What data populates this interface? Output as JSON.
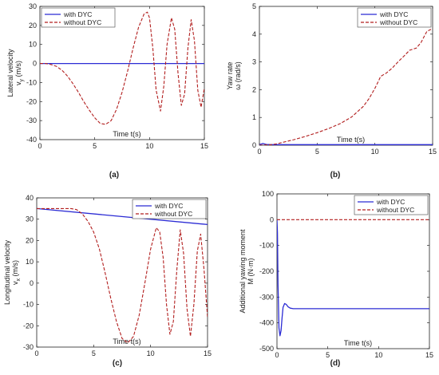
{
  "colors": {
    "with_dyc": "#2b2bd4",
    "without_dyc": "#b21e1e",
    "axis": "#222222"
  },
  "chart_data": [
    {
      "type": "line",
      "panel_label": "(a)",
      "title": "",
      "xlabel": "Time t(s)",
      "ylabel": "Lateral velocity",
      "ylabel_sub": "v",
      "ylabel_subscript": "y",
      "ylabel_unit": "(m/s)",
      "xlim": [
        0,
        15
      ],
      "ylim": [
        -40,
        30
      ],
      "xticks": [
        0,
        5,
        10,
        15
      ],
      "yticks": [
        -40,
        -30,
        -20,
        -10,
        0,
        10,
        20,
        30
      ],
      "grid": false,
      "legend_position": "top-left",
      "series": [
        {
          "name": "with DYC",
          "style": "solid",
          "x": [
            0,
            15
          ],
          "y": [
            0,
            0
          ]
        },
        {
          "name": "without DYC",
          "style": "dashed",
          "x": [
            0,
            0.5,
            1,
            1.5,
            2,
            2.5,
            3,
            3.5,
            4,
            4.5,
            5,
            5.5,
            6,
            6.5,
            7,
            7.5,
            8,
            8.5,
            9,
            9.5,
            9.8,
            10,
            10.3,
            10.6,
            11,
            11.3,
            11.6,
            12,
            12.3,
            12.6,
            12.9,
            13.2,
            13.5,
            13.8,
            14.1,
            14.4,
            14.7,
            15
          ],
          "y": [
            0,
            0,
            -0.5,
            -1.5,
            -3.5,
            -6.5,
            -10.5,
            -15,
            -20,
            -24.5,
            -28.5,
            -31.5,
            -32,
            -30,
            -24,
            -15,
            -4,
            8,
            19,
            26,
            27,
            24,
            8,
            -14,
            -25,
            -12,
            10,
            24,
            18,
            -5,
            -22,
            -16,
            8,
            23,
            12,
            -14,
            -23,
            -13
          ]
        }
      ]
    },
    {
      "type": "line",
      "panel_label": "(b)",
      "title": "",
      "xlabel": "Time t(s)",
      "ylabel": "Yaw rate",
      "ylabel_sub": "ω",
      "ylabel_subscript": "",
      "ylabel_unit": "(rad/s)",
      "xlim": [
        0,
        15
      ],
      "ylim": [
        0,
        5
      ],
      "xticks": [
        0,
        5,
        10,
        15
      ],
      "yticks": [
        0,
        1,
        2,
        3,
        4,
        5
      ],
      "grid": false,
      "legend_position": "top-right",
      "series": [
        {
          "name": "with DYC",
          "style": "solid",
          "x": [
            0,
            0.3,
            0.6,
            1,
            1.5,
            15
          ],
          "y": [
            0.02,
            0.06,
            0.03,
            0.02,
            0.02,
            0.02
          ]
        },
        {
          "name": "without DYC",
          "style": "dashed",
          "x": [
            0,
            0.5,
            1,
            1.5,
            2,
            3,
            4,
            5,
            6,
            7,
            8,
            9,
            9.5,
            10,
            10.3,
            10.5,
            11,
            11.5,
            12,
            12.5,
            13,
            13.3,
            13.6,
            14,
            14.5,
            15
          ],
          "y": [
            0,
            0.01,
            0.02,
            0.05,
            0.1,
            0.2,
            0.32,
            0.45,
            0.6,
            0.78,
            1.02,
            1.4,
            1.68,
            2.05,
            2.3,
            2.48,
            2.6,
            2.78,
            3.0,
            3.2,
            3.42,
            3.46,
            3.5,
            3.7,
            4.1,
            4.2
          ]
        }
      ]
    },
    {
      "type": "line",
      "panel_label": "(c)",
      "title": "",
      "xlabel": "Time t(s)",
      "ylabel": "Longitudinal velocity",
      "ylabel_sub": "v",
      "ylabel_subscript": "x",
      "ylabel_unit": "(m/s)",
      "xlim": [
        0,
        15
      ],
      "ylim": [
        -30,
        40
      ],
      "xticks": [
        0,
        5,
        10,
        15
      ],
      "yticks": [
        -30,
        -20,
        -10,
        0,
        10,
        20,
        30,
        40
      ],
      "grid": false,
      "legend_position": "top-right",
      "series": [
        {
          "name": "with DYC",
          "style": "solid",
          "x": [
            0,
            15
          ],
          "y": [
            35,
            27.5
          ]
        },
        {
          "name": "without DYC",
          "style": "dashed",
          "x": [
            0,
            1,
            2,
            3,
            3.5,
            4,
            4.5,
            5,
            5.5,
            6,
            6.5,
            7,
            7.5,
            8,
            8.5,
            9,
            9.5,
            10,
            10.5,
            10.8,
            11.1,
            11.4,
            11.7,
            12,
            12.3,
            12.6,
            12.9,
            13.2,
            13.5,
            13.8,
            14.1,
            14.4,
            14.7,
            15
          ],
          "y": [
            35,
            35,
            35,
            35,
            34.5,
            32.5,
            29,
            24,
            16,
            5,
            -7,
            -18,
            -26,
            -28,
            -25,
            -15,
            0,
            16,
            26,
            24,
            12,
            -10,
            -24,
            -18,
            6,
            25,
            14,
            -12,
            -25,
            -10,
            15,
            23,
            6,
            -16
          ]
        }
      ]
    },
    {
      "type": "line",
      "panel_label": "(d)",
      "title": "",
      "xlabel": "Time t(s)",
      "ylabel": "Additional yawing moment",
      "ylabel_sub": "M (N·m)",
      "ylabel_subscript": "",
      "ylabel_unit": "",
      "xlim": [
        0,
        15
      ],
      "ylim": [
        -500,
        100
      ],
      "xticks": [
        0,
        5,
        10,
        15
      ],
      "yticks": [
        -500,
        -400,
        -300,
        -200,
        -100,
        0,
        100
      ],
      "grid": false,
      "legend_position": "top-right",
      "series": [
        {
          "name": "with DYC",
          "style": "solid",
          "x": [
            0,
            0.05,
            0.1,
            0.2,
            0.3,
            0.4,
            0.5,
            0.6,
            0.75,
            0.9,
            1.1,
            1.3,
            1.6,
            2,
            15
          ],
          "y": [
            0,
            -50,
            -250,
            -420,
            -450,
            -430,
            -380,
            -340,
            -325,
            -328,
            -338,
            -343,
            -345,
            -345,
            -345
          ]
        },
        {
          "name": "without DYC",
          "style": "dashed",
          "x": [
            0,
            15
          ],
          "y": [
            0,
            0
          ]
        }
      ]
    }
  ]
}
